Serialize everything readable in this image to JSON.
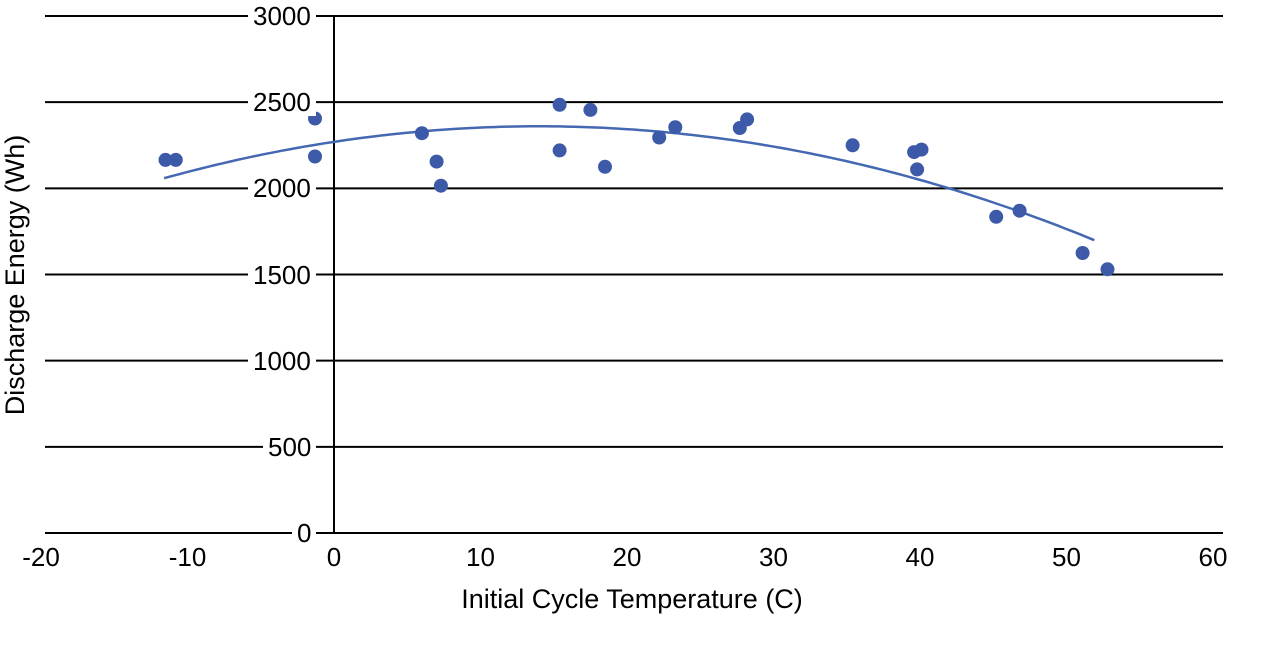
{
  "chart_data": {
    "type": "scatter",
    "title": "",
    "xlabel": "Initial Cycle Temperature (C)",
    "ylabel": "Discharge Energy (Wh)",
    "xlim": [
      -20,
      60
    ],
    "ylim": [
      0,
      3000
    ],
    "x_ticks": [
      -20,
      -10,
      0,
      10,
      20,
      30,
      40,
      50,
      60
    ],
    "y_ticks": [
      0,
      500,
      1000,
      1500,
      2000,
      2500,
      3000
    ],
    "grid": "horizontal-black-lines",
    "legend": "none",
    "series": [
      {
        "name": "Discharge Energy",
        "marker": "circle",
        "marker_color": "#3D5AA8",
        "points": [
          [
            -11.5,
            2165
          ],
          [
            -10.8,
            2165
          ],
          [
            -1.3,
            2405
          ],
          [
            -1.3,
            2185
          ],
          [
            6.0,
            2320
          ],
          [
            7.0,
            2155
          ],
          [
            7.3,
            2015
          ],
          [
            15.4,
            2485
          ],
          [
            17.5,
            2455
          ],
          [
            15.4,
            2220
          ],
          [
            18.5,
            2125
          ],
          [
            22.2,
            2295
          ],
          [
            23.3,
            2355
          ],
          [
            27.7,
            2350
          ],
          [
            28.2,
            2400
          ],
          [
            35.4,
            2250
          ],
          [
            39.6,
            2210
          ],
          [
            40.1,
            2225
          ],
          [
            39.8,
            2110
          ],
          [
            45.2,
            1835
          ],
          [
            46.8,
            1870
          ],
          [
            51.1,
            1625
          ],
          [
            52.8,
            1530
          ]
        ]
      }
    ],
    "trendline": {
      "type": "quadratic",
      "a": -0.46,
      "vertex_t": 14,
      "vertex_e": 2360,
      "t_start": -11.6,
      "t_end": 52.3,
      "color": "#4568B2"
    },
    "colors": {
      "marker": "#3D5AA8",
      "trend": "#4568B2",
      "grid": "#000000",
      "text": "#000000",
      "background": "#ffffff"
    }
  }
}
